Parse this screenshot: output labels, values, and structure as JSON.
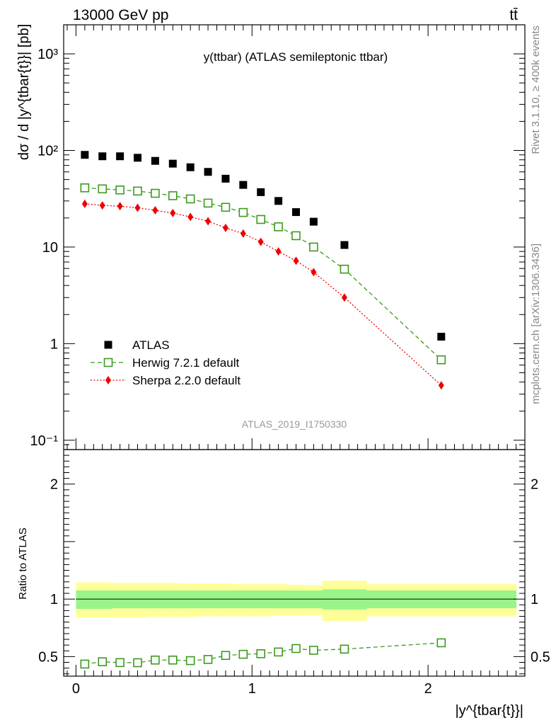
{
  "header": {
    "energy_label": "13000 GeV pp",
    "process_label": "tt̄"
  },
  "side_labels": {
    "rivet": "Rivet 3.1.10, ≥ 400k events",
    "mcplots": "mcplots.cern.ch [arXiv:1306.3436]"
  },
  "chart_data": [
    {
      "panel": "main",
      "type": "scatter",
      "title": "y(ttbar) (ATLAS semileptonic ttbar)",
      "ylabel": "dσ / d |y^{tbar{t}}| [pb]",
      "analysis_id": "ATLAS_2019_I1750330",
      "yscale": "log",
      "xlim": [
        -0.07,
        2.55
      ],
      "ylim": [
        0.08,
        2000
      ],
      "y_ticks": [
        {
          "value": 0.1,
          "label": "10⁻¹"
        },
        {
          "value": 1,
          "label": "1"
        },
        {
          "value": 10,
          "label": "10"
        },
        {
          "value": 100,
          "label": "10²"
        },
        {
          "value": 1000,
          "label": "10³"
        }
      ],
      "legend_position": "bottom-left",
      "x": [
        0.05,
        0.15,
        0.25,
        0.35,
        0.45,
        0.55,
        0.65,
        0.75,
        0.85,
        0.95,
        1.05,
        1.15,
        1.25,
        1.35,
        1.525,
        2.075
      ],
      "series": [
        {
          "name": "ATLAS",
          "color": "#000000",
          "marker": "filled-square",
          "line": "none",
          "values": [
            90,
            87,
            87,
            84,
            78,
            73,
            67,
            60,
            51,
            44,
            37,
            30,
            23,
            18.3,
            10.5,
            1.18
          ]
        },
        {
          "name": "Herwig 7.2.1 default",
          "color": "#3c9a1e",
          "marker": "open-square",
          "line": "dashed",
          "values": [
            41,
            40,
            39,
            38,
            36,
            34,
            31.5,
            28.5,
            25.8,
            22.8,
            19.3,
            16.2,
            13.1,
            10,
            5.9,
            0.68
          ]
        },
        {
          "name": "Sherpa 2.2.0 default",
          "color": "#ee0000",
          "marker": "filled-diamond",
          "line": "dotted",
          "values": [
            28,
            27,
            26.5,
            25.5,
            24,
            22.5,
            20.5,
            18.5,
            15.8,
            13.8,
            11.3,
            9,
            7.2,
            5.5,
            3,
            0.37
          ]
        }
      ]
    },
    {
      "panel": "ratio",
      "type": "scatter",
      "ylabel": "Ratio to ATLAS",
      "xlabel": "|y^{tbar{t}}|",
      "xlim": [
        -0.07,
        2.55
      ],
      "ylim": [
        0.33,
        2.3
      ],
      "x_ticks": [
        {
          "value": 0,
          "label": "0"
        },
        {
          "value": 1,
          "label": "1"
        },
        {
          "value": 2,
          "label": "2"
        }
      ],
      "y_ticks": [
        {
          "value": 0.5,
          "label": "0.5"
        },
        {
          "value": 1,
          "label": "1"
        },
        {
          "value": 2,
          "label": "2"
        }
      ],
      "uncertainty_bands": {
        "bin_edges": [
          0,
          0.1,
          0.2,
          0.3,
          0.4,
          0.5,
          0.6,
          0.7,
          0.8,
          0.9,
          1.0,
          1.1,
          1.2,
          1.3,
          1.4,
          1.65,
          2.5
        ],
        "outer_color": "#ffff99",
        "inner_color": "#99f58a",
        "outer_low": [
          0.84,
          0.84,
          0.84,
          0.84,
          0.845,
          0.845,
          0.845,
          0.85,
          0.85,
          0.85,
          0.85,
          0.855,
          0.855,
          0.86,
          0.81,
          0.85
        ],
        "outer_high": [
          1.145,
          1.145,
          1.14,
          1.14,
          1.14,
          1.14,
          1.135,
          1.135,
          1.135,
          1.13,
          1.13,
          1.13,
          1.125,
          1.12,
          1.16,
          1.13
        ],
        "inner_low": [
          0.915,
          0.915,
          0.92,
          0.92,
          0.92,
          0.92,
          0.92,
          0.92,
          0.92,
          0.92,
          0.92,
          0.92,
          0.92,
          0.92,
          0.91,
          0.92
        ],
        "inner_high": [
          1.075,
          1.075,
          1.075,
          1.075,
          1.075,
          1.075,
          1.075,
          1.075,
          1.075,
          1.075,
          1.075,
          1.075,
          1.075,
          1.075,
          1.085,
          1.075
        ]
      },
      "x": [
        0.05,
        0.15,
        0.25,
        0.35,
        0.45,
        0.55,
        0.65,
        0.75,
        0.85,
        0.95,
        1.05,
        1.15,
        1.25,
        1.35,
        1.525,
        2.075
      ],
      "series": [
        {
          "name": "Herwig 7.2.1 default",
          "color": "#3c9a1e",
          "marker": "open-square",
          "line": "dashed",
          "values": [
            0.435,
            0.455,
            0.448,
            0.447,
            0.47,
            0.47,
            0.465,
            0.475,
            0.51,
            0.52,
            0.525,
            0.54,
            0.57,
            0.555,
            0.565,
            0.62
          ]
        }
      ]
    }
  ]
}
